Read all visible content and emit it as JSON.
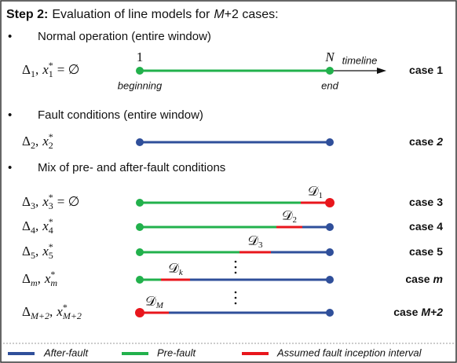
{
  "header": {
    "step": "Step 2:",
    "text": "Evaluation of line models for",
    "M": "M",
    "suffix": "+2 cases:"
  },
  "symbols": {
    "delta": "Δ",
    "sep": ",",
    "x": "x",
    "star": "*",
    "empty": "= ∅",
    "bullet": "•",
    "D": "𝒟"
  },
  "sections": [
    "Normal operation (entire window)",
    "Fault conditions (entire window)",
    "Mix of pre- and after-fault conditions"
  ],
  "timeline": {
    "start": "1",
    "start_label": "beginning",
    "end": "N",
    "end_label": "end",
    "axis": "timeline"
  },
  "rows": [
    {
      "sub": "1",
      "empty": true,
      "case": "case",
      "num": "1",
      "italic": false,
      "kind": "normal"
    },
    {
      "sub": "2",
      "empty": false,
      "case": "case",
      "num": "2",
      "italic": true,
      "kind": "fault"
    },
    {
      "sub": "3",
      "empty": true,
      "case": "case",
      "num": "3",
      "italic": false,
      "kind": "mix",
      "d_sub": "1"
    },
    {
      "sub": "4",
      "empty": false,
      "case": "case",
      "num": "4",
      "italic": false,
      "kind": "mix",
      "d_sub": "2"
    },
    {
      "sub": "5",
      "empty": false,
      "case": "case",
      "num": "5",
      "italic": false,
      "kind": "mix",
      "d_sub": "3"
    },
    {
      "sub": "m",
      "empty": false,
      "case": "case",
      "num": "m",
      "italic": true,
      "kind": "mix",
      "d_sub": "k"
    },
    {
      "sub": "M+2",
      "empty": false,
      "case": "case",
      "num": "M+2",
      "italic": true,
      "kind": "mix",
      "d_sub": "M"
    }
  ],
  "legend": {
    "after": "After-fault",
    "pre": "Pre-fault",
    "interval": "Assumed fault inception interval"
  }
}
